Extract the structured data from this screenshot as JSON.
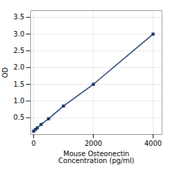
{
  "chart_data": {
    "type": "line",
    "x": [
      0,
      62.5,
      125,
      250,
      500,
      1000,
      2000,
      4000
    ],
    "values": [
      0.1,
      0.15,
      0.2,
      0.3,
      0.47,
      0.85,
      1.5,
      3.0
    ],
    "color": "#1a3a6b",
    "marker": "square",
    "xlabel": "Mouse Osteonectin\nConcentration (pg/ml)",
    "ylabel": "OD",
    "xlim": [
      -100,
      4300
    ],
    "ylim": [
      0,
      3.7
    ],
    "xticks": [
      0,
      2000,
      4000
    ],
    "yticks": [
      0.5,
      {
        "value": 1,
        "label": "1.0"
      },
      1.5,
      {
        "value": 2,
        "label": "2.0"
      },
      2.5,
      {
        "value": 3,
        "label": "3.0"
      },
      3.5
    ],
    "grid": true
  }
}
